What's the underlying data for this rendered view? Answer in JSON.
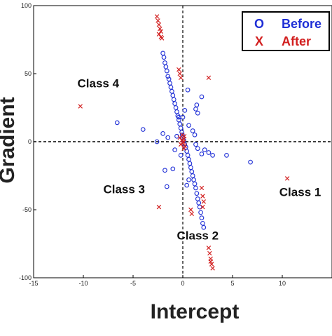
{
  "chart_data": {
    "type": "scatter",
    "xlabel": "Intercept",
    "ylabel": "Gradient",
    "xlim": [
      -15,
      15
    ],
    "ylim": [
      -100,
      100
    ],
    "xticks": [
      "-15",
      "-10",
      "-5",
      "0",
      "5",
      "10"
    ],
    "yticks": [
      "100",
      "50",
      "0",
      "-50",
      "-100"
    ],
    "reference_lines": [
      {
        "axis": "x",
        "value": 0,
        "style": "dashed"
      },
      {
        "axis": "y",
        "value": 0,
        "style": "dashed"
      }
    ],
    "legend_position": "top-right",
    "annotations": [
      {
        "text": "Class 4",
        "x": -8.5,
        "y": 40
      },
      {
        "text": "Class 3",
        "x": -5.9,
        "y": -38
      },
      {
        "text": "Class 2",
        "x": 1.5,
        "y": -72
      },
      {
        "text": "Class 1",
        "x": 11.8,
        "y": -40
      }
    ],
    "series": [
      {
        "name": "Before",
        "marker": "circle",
        "color": "#1f2fd6",
        "points": [
          [
            -2.0,
            65
          ],
          [
            -1.9,
            62
          ],
          [
            -1.8,
            58
          ],
          [
            -1.7,
            55
          ],
          [
            -1.6,
            52
          ],
          [
            -1.5,
            48
          ],
          [
            -1.4,
            46
          ],
          [
            -1.3,
            43
          ],
          [
            -1.2,
            40
          ],
          [
            -1.1,
            37
          ],
          [
            -1.0,
            34
          ],
          [
            -0.9,
            31
          ],
          [
            -0.8,
            28
          ],
          [
            -0.7,
            25
          ],
          [
            -0.6,
            22
          ],
          [
            -0.5,
            19
          ],
          [
            -0.4,
            16
          ],
          [
            -0.3,
            13
          ],
          [
            -0.2,
            10
          ],
          [
            -0.1,
            7
          ],
          [
            -0.05,
            5
          ],
          [
            0.0,
            3
          ],
          [
            0.1,
            1
          ],
          [
            0.2,
            -2
          ],
          [
            0.3,
            -4
          ],
          [
            0.4,
            -7
          ],
          [
            0.5,
            -10
          ],
          [
            0.6,
            -13
          ],
          [
            0.7,
            -16
          ],
          [
            0.8,
            -19
          ],
          [
            0.9,
            -22
          ],
          [
            1.0,
            -25
          ],
          [
            1.1,
            -28
          ],
          [
            1.2,
            -31
          ],
          [
            1.3,
            -34
          ],
          [
            1.4,
            -38
          ],
          [
            1.5,
            -42
          ],
          [
            1.6,
            -45
          ],
          [
            1.7,
            -48
          ],
          [
            1.8,
            -52
          ],
          [
            1.9,
            -56
          ],
          [
            2.0,
            -60
          ],
          [
            2.1,
            -63
          ],
          [
            0.0,
            18
          ],
          [
            0.2,
            23
          ],
          [
            0.5,
            38
          ],
          [
            0.6,
            12
          ],
          [
            1.0,
            8
          ],
          [
            1.2,
            5
          ],
          [
            1.3,
            -2
          ],
          [
            1.5,
            -5
          ],
          [
            1.9,
            -9
          ],
          [
            2.2,
            -6
          ],
          [
            2.6,
            -8
          ],
          [
            3.0,
            -10
          ],
          [
            -0.6,
            4
          ],
          [
            -1.5,
            3
          ],
          [
            -0.8,
            -6
          ],
          [
            -0.2,
            -10
          ],
          [
            0.6,
            -28
          ],
          [
            0.4,
            -32
          ],
          [
            -1.0,
            -20
          ],
          [
            -1.8,
            -21
          ],
          [
            1.9,
            33
          ],
          [
            1.3,
            24
          ],
          [
            1.5,
            21
          ],
          [
            1.4,
            27
          ],
          [
            -6.6,
            14
          ],
          [
            -4.0,
            9
          ],
          [
            -2.0,
            6
          ],
          [
            -2.6,
            0
          ],
          [
            4.4,
            -10
          ],
          [
            6.8,
            -15
          ],
          [
            -1.6,
            -33
          ],
          [
            -0.4,
            18
          ]
        ]
      },
      {
        "name": "After",
        "marker": "x",
        "color": "#d21f1f",
        "points": [
          [
            -2.6,
            92
          ],
          [
            -2.5,
            89
          ],
          [
            -2.4,
            86
          ],
          [
            -2.3,
            83
          ],
          [
            -2.4,
            79
          ],
          [
            -2.2,
            77
          ],
          [
            -2.1,
            76
          ],
          [
            -2.2,
            81
          ],
          [
            -0.4,
            53
          ],
          [
            -0.3,
            50
          ],
          [
            -0.2,
            47
          ],
          [
            2.6,
            47
          ],
          [
            -10.3,
            26
          ],
          [
            10.5,
            -27
          ],
          [
            -2.4,
            -48
          ],
          [
            1.9,
            -34
          ],
          [
            2.0,
            -40
          ],
          [
            2.1,
            -44
          ],
          [
            0.8,
            -50
          ],
          [
            0.9,
            -53
          ],
          [
            2.0,
            -48
          ],
          [
            2.6,
            -78
          ],
          [
            2.7,
            -82
          ],
          [
            2.8,
            -86
          ],
          [
            2.9,
            -90
          ],
          [
            3.0,
            -93
          ],
          [
            2.8,
            -88
          ],
          [
            -0.3,
            3
          ],
          [
            -0.1,
            1
          ],
          [
            0.0,
            -1
          ],
          [
            0.1,
            2
          ],
          [
            0.2,
            -3
          ],
          [
            0.05,
            0
          ],
          [
            -0.2,
            -2
          ],
          [
            0.15,
            4
          ],
          [
            -0.05,
            5
          ],
          [
            0.1,
            -5
          ]
        ]
      }
    ]
  },
  "legend": {
    "entries": [
      {
        "symbol": "O",
        "label": "Before",
        "color": "#1f2fd6"
      },
      {
        "symbol": "X",
        "label": "After",
        "color": "#d21f1f"
      }
    ]
  }
}
